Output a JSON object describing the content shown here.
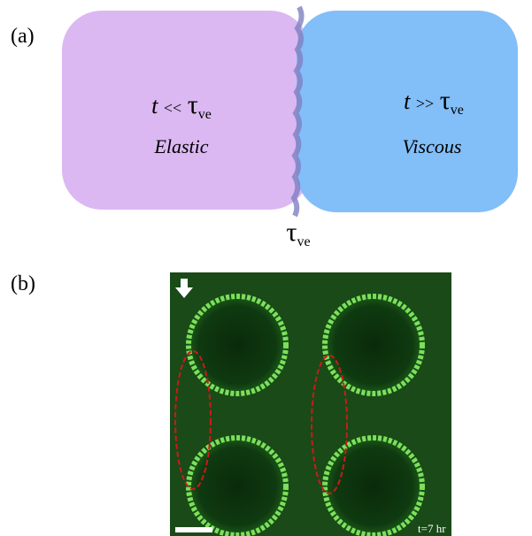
{
  "panel_a": {
    "label": "(a)",
    "left": {
      "t": "t",
      "relation": "<<",
      "tau": "τ",
      "sub": "ve",
      "regime": "Elastic"
    },
    "right": {
      "t": "t",
      "relation": ">>",
      "tau": "τ",
      "sub": "ve",
      "regime": "Viscous"
    },
    "boundary": {
      "tau": "τ",
      "sub": "ve"
    }
  },
  "panel_b": {
    "label": "(b)",
    "timestamp": "t=7 hr"
  }
}
